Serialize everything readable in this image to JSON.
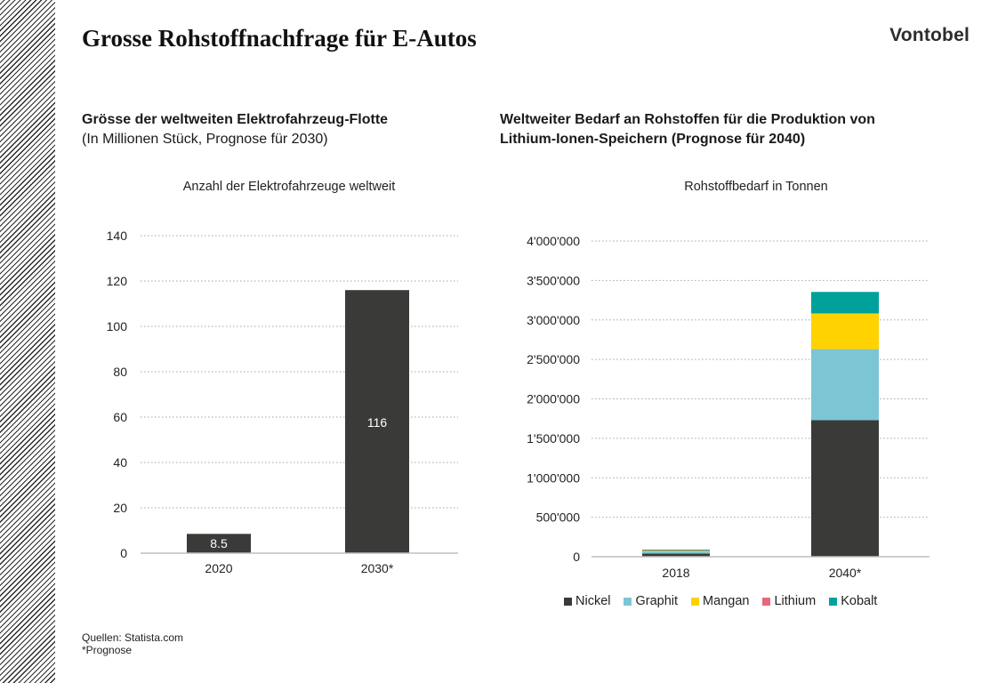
{
  "page": {
    "title": "Grosse Rohstoffnachfrage für E-Autos",
    "brand": "Vontobel",
    "left_heading": "Grösse der weltweiten Elektrofahrzeug-Flotte",
    "left_subheading": "(In Millionen Stück, Prognose für 2030)",
    "right_heading_1": "Weltweiter Bedarf an Rohstoffen für die Produktion von",
    "right_heading_2": "Lithium-Ionen-Speichern (Prognose für 2040)",
    "source_1": "Quellen: Statista.com",
    "source_2": "*Prognose"
  },
  "colors": {
    "bar_dark": "#3a3b39",
    "Nickel": "#3a3b39",
    "Graphit": "#7cc5d4",
    "Mangan": "#ffd200",
    "Lithium": "#e8677f",
    "Kobalt": "#00a19a",
    "grid": "#a6a6a6"
  },
  "chart_data": [
    {
      "type": "bar",
      "title": "Anzahl der Elektrofahrzeuge weltweit",
      "categories": [
        "2020",
        "2030*"
      ],
      "values": [
        8.5,
        116
      ],
      "data_labels": [
        "8.5",
        "116"
      ],
      "ylim": [
        0,
        140
      ],
      "yticks": [
        0,
        20,
        40,
        60,
        80,
        100,
        120,
        140
      ],
      "ytick_labels": [
        "0",
        "20",
        "40",
        "60",
        "80",
        "100",
        "120",
        "140"
      ],
      "xlabel": "",
      "ylabel": "",
      "grid": true
    },
    {
      "type": "bar",
      "stacked": true,
      "title": "Rohstoffbedarf in Tonnen",
      "categories": [
        "2018",
        "2040*"
      ],
      "series": [
        {
          "name": "Nickel",
          "values": [
            40000,
            1730000
          ]
        },
        {
          "name": "Graphit",
          "values": [
            25000,
            900000
          ]
        },
        {
          "name": "Mangan",
          "values": [
            12000,
            450000
          ]
        },
        {
          "name": "Lithium",
          "values": [
            3000,
            5000
          ]
        },
        {
          "name": "Kobalt",
          "values": [
            10000,
            270000
          ]
        }
      ],
      "ylim": [
        0,
        4000000
      ],
      "yticks": [
        0,
        500000,
        1000000,
        1500000,
        2000000,
        2500000,
        3000000,
        3500000,
        4000000
      ],
      "ytick_labels": [
        "0",
        "500'000",
        "1'000'000",
        "1'500'000",
        "2'000'000",
        "2'500'000",
        "3'000'000",
        "3'500'000",
        "4'000'000"
      ],
      "legend": "bottom",
      "grid": true
    }
  ]
}
